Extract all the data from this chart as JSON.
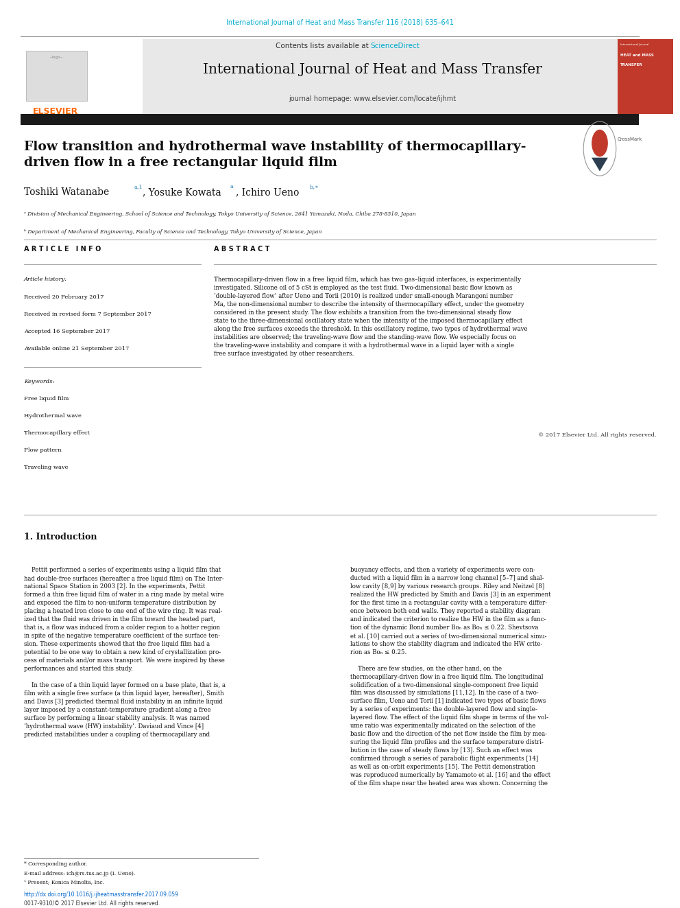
{
  "page_width": 9.92,
  "page_height": 13.23,
  "bg_color": "#ffffff",
  "top_journal_ref": "International Journal of Heat and Mass Transfer 116 (2018) 635–641",
  "top_journal_ref_color": "#00aacc",
  "journal_name": "International Journal of Heat and Mass Transfer",
  "journal_homepage": "journal homepage: www.elsevier.com/locate/ijhmt",
  "contents_line": "Contents lists available at ",
  "sciencedirect_text": "ScienceDirect",
  "sciencedirect_color": "#00aacc",
  "header_bg": "#e8e8e8",
  "elsevier_color": "#ff6600",
  "black_bar_color": "#1a1a1a",
  "title": "Flow transition and hydrothermal wave instability of thermocapillary-\ndriven flow in a free rectangular liquid film",
  "affil_a": "ᵃ Division of Mechanical Engineering, School of Science and Technology, Tokyo University of Science, 2641 Yamazaki, Noda, Chiba 278-8510, Japan",
  "affil_b": "ᵇ Department of Mechanical Engineering, Faculty of Science and Technology, Tokyo University of Science, Japan",
  "article_info_header": "A R T I C L E   I N F O",
  "article_history_header": "Article history:",
  "article_history": [
    "Received 20 February 2017",
    "Received in revised form 7 September 2017",
    "Accepted 16 September 2017",
    "Available online 21 September 2017"
  ],
  "keywords_header": "Keywords:",
  "keywords": [
    "Free liquid film",
    "Hydrothermal wave",
    "Thermocapillary effect",
    "Flow pattern",
    "Traveling wave"
  ],
  "abstract_header": "A B S T R A C T",
  "abstract_text": "Thermocapillary-driven flow in a free liquid film, which has two gas–liquid interfaces, is experimentally\ninvestigated. Silicone oil of 5 cSt is employed as the test fluid. Two-dimensional basic flow known as\n‘double-layered flow’ after Ueno and Torii (2010) is realized under small-enough Marangoni number\nMa, the non-dimensional number to describe the intensity of thermocapillary effect, under the geometry\nconsidered in the present study. The flow exhibits a transition from the two-dimensional steady flow\nstate to the three-dimensional oscillatory state when the intensity of the imposed thermocapillary effect\nalong the free surfaces exceeds the threshold. In this oscillatory regime, two types of hydrothermal wave\ninstabilities are observed; the traveling-wave flow and the standing-wave flow. We especially focus on\nthe traveling-wave instability and compare it with a hydrothermal wave in a liquid layer with a single\nfree surface investigated by other researchers.",
  "copyright": "© 2017 Elsevier Ltd. All rights reserved.",
  "intro_header": "1. Introduction",
  "intro_left": "    Pettit performed a series of experiments using a liquid film that\nhad double-free surfaces (hereafter a free liquid film) on The Inter-\nnational Space Station in 2003 [2]. In the experiments, Pettit\nformed a thin free liquid film of water in a ring made by metal wire\nand exposed the film to non-uniform temperature distribution by\nplacing a heated iron close to one end of the wire ring. It was real-\nized that the fluid was driven in the film toward the heated part,\nthat is, a flow was induced from a colder region to a hotter region\nin spite of the negative temperature coefficient of the surface ten-\nsion. These experiments showed that the free liquid film had a\npotential to be one way to obtain a new kind of crystallization pro-\ncess of materials and/or mass transport. We were inspired by these\nperformances and started this study.\n\n    In the case of a thin liquid layer formed on a base plate, that is, a\nfilm with a single free surface (a thin liquid layer, hereafter), Smith\nand Davis [3] predicted thermal fluid instability in an infinite liquid\nlayer imposed by a constant-temperature gradient along a free\nsurface by performing a linear stability analysis. It was named\n‘hydrothermal wave (HW) instability’. Daviaud and Vince [4]\npredicted instabilities under a coupling of thermocapillary and",
  "intro_right": "buoyancy effects, and then a variety of experiments were con-\nducted with a liquid film in a narrow long channel [5–7] and shal-\nlow cavity [8,9] by various research groups. Riley and Neitzel [8]\nrealized the HW predicted by Smith and Davis [3] in an experiment\nfor the first time in a rectangular cavity with a temperature differ-\nence between both end walls. They reported a stability diagram\nand indicated the criterion to realize the HW in the film as a func-\ntion of the dynamic Bond number Boₙ as Boₙ ≤ 0.22. Shevtsova\net al. [10] carried out a series of two-dimensional numerical simu-\nlations to show the stability diagram and indicated the HW crite-\nrion as Boₙ ≤ 0.25.\n\n    There are few studies, on the other hand, on the\nthermocapillary-driven flow in a free liquid film. The longitudinal\nsolidification of a two-dimensional single-component free liquid\nfilm was discussed by simulations [11,12]. In the case of a two-\nsurface film, Ueno and Torii [1] indicated two types of basic flows\nby a series of experiments: the double-layered flow and single-\nlayered flow. The effect of the liquid film shape in terms of the vol-\nume ratio was experimentally indicated on the selection of the\nbasic flow and the direction of the net flow inside the film by mea-\nsuring the liquid film profiles and the surface temperature distri-\nbution in the case of steady flows by [13]. Such an effect was\nconfirmed through a series of parabolic flight experiments [14]\nas well as on-orbit experiments [15]. The Pettit demonstration\nwas reproduced numerically by Yamamoto et al. [16] and the effect\nof the film shape near the heated area was shown. Concerning the",
  "footer_star": "* Corresponding author.",
  "footer_email": "E-mail address: ich@rs.tus.ac.jp (I. Ueno).",
  "footer_1": "¹ Present; Konica Minolta, Inc.",
  "doi_text": "http://dx.doi.org/10.1016/j.ijheatmasstransfer.2017.09.059",
  "doi_color": "#0066cc",
  "issn_text": "0017-9310/© 2017 Elsevier Ltd. All rights reserved.",
  "red_cover_color": "#c0392b",
  "link_color": "#2980b9"
}
